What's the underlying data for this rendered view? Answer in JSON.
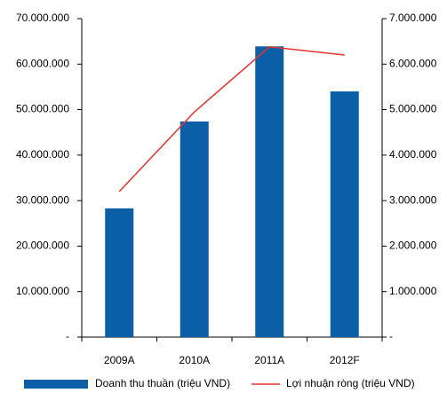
{
  "chart_data": {
    "type": "bar-line",
    "categories": [
      "2009A",
      "2010A",
      "2011A",
      "2012F"
    ],
    "series": [
      {
        "name": "Doanh thu thuần (triệu VND)",
        "type": "bar",
        "color": "#0a5fa6",
        "values": [
          28300000,
          47400000,
          63900000,
          54000000
        ]
      },
      {
        "name": "Lợi nhuận ròng (triệu VND)",
        "type": "line",
        "color": "#e8312b",
        "axis": "y2",
        "values": [
          3200000,
          4950000,
          6380000,
          6200000
        ]
      }
    ],
    "ylim": [
      0,
      70000000
    ],
    "yticks": [
      {
        "value": 0,
        "label": "-"
      },
      {
        "value": 10000000,
        "label": "10.000.000"
      },
      {
        "value": 20000000,
        "label": "20.000.000"
      },
      {
        "value": 30000000,
        "label": "30.000.000"
      },
      {
        "value": 40000000,
        "label": "40.000.000"
      },
      {
        "value": 50000000,
        "label": "50.000.000"
      },
      {
        "value": 60000000,
        "label": "60.000.000"
      },
      {
        "value": 70000000,
        "label": "70.000.000"
      }
    ],
    "y2lim": [
      0,
      7000000
    ],
    "y2ticks": [
      {
        "value": 0,
        "label": "-"
      },
      {
        "value": 1000000,
        "label": "1.000.000"
      },
      {
        "value": 2000000,
        "label": "2.000.000"
      },
      {
        "value": 3000000,
        "label": "3.000.000"
      },
      {
        "value": 4000000,
        "label": "4.000.000"
      },
      {
        "value": 5000000,
        "label": "5.000.000"
      },
      {
        "value": 6000000,
        "label": "6.000.000"
      },
      {
        "value": 7000000,
        "label": "7.000.000"
      }
    ],
    "grid": false
  }
}
